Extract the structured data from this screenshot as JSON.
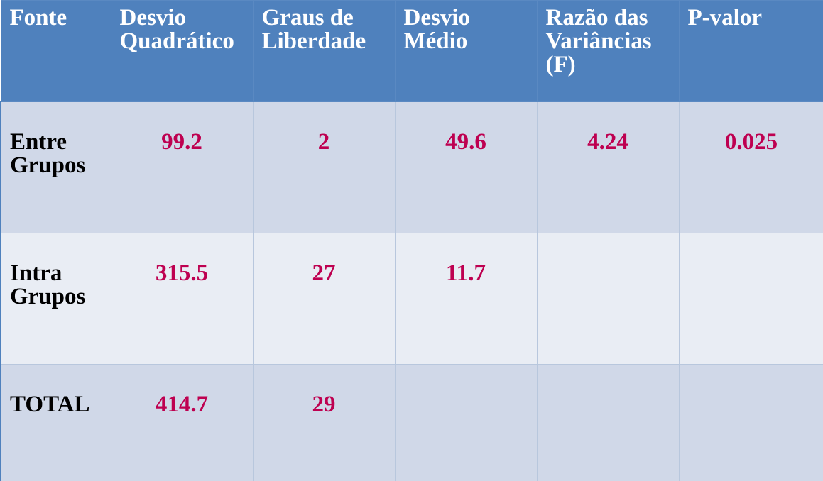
{
  "table": {
    "header": [
      "Fonte",
      "Desvio Quadrático",
      "Graus de Liberdade",
      "Desvio Médio",
      "Razão das Variâncias (F)",
      "P-valor"
    ],
    "rows": [
      [
        "Entre Grupos",
        "99.2",
        "2",
        "49.6",
        "4.24",
        "0.025"
      ],
      [
        "Intra Grupos",
        "315.5",
        "27",
        "11.7"
      ],
      [
        "TOTAL",
        "414.7",
        "29"
      ]
    ]
  }
}
